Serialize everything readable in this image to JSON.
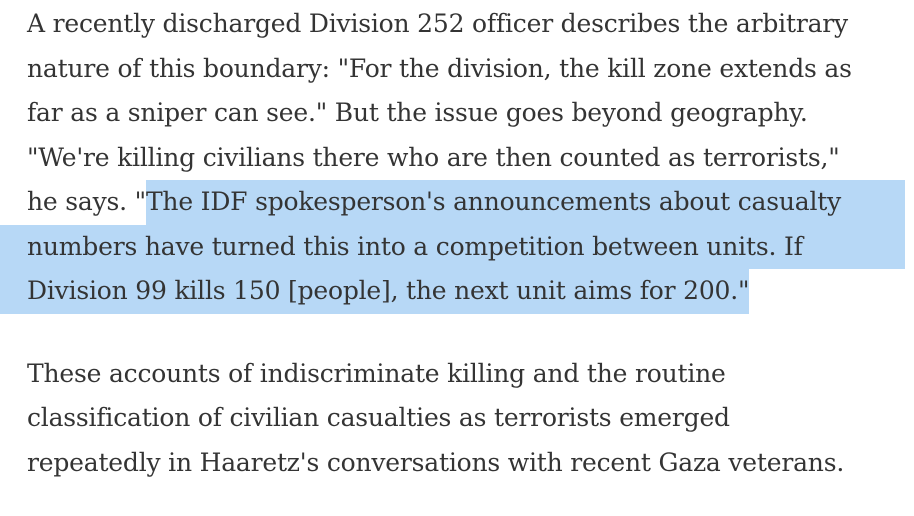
{
  "page": {
    "background_color": "#ffffff",
    "text_color": "#343434",
    "highlight_color": "#b7d8f6"
  },
  "article": {
    "paragraphs": [
      {
        "lines": [
          {
            "fill": "none",
            "segments": [
              {
                "text": "A recently discharged Division 252 officer describes the arbitrary",
                "highlighted": false
              }
            ]
          },
          {
            "fill": "none",
            "segments": [
              {
                "text": "nature of this boundary: \"For the division, the kill zone extends as",
                "highlighted": false
              }
            ]
          },
          {
            "fill": "none",
            "segments": [
              {
                "text": "far as a sniper can see.\" But the issue goes beyond geography.",
                "highlighted": false
              }
            ]
          },
          {
            "fill": "none",
            "segments": [
              {
                "text": "\"We're killing civilians there who are then counted as terrorists,\"",
                "highlighted": false
              }
            ]
          },
          {
            "fill": "right",
            "segments": [
              {
                "text": "he says. \"",
                "highlighted": false
              },
              {
                "text": "The IDF spokesperson's announcements about casualty",
                "highlighted": true
              }
            ]
          },
          {
            "fill": "both",
            "segments": [
              {
                "text": "numbers have turned this into a competition between units. If",
                "highlighted": true
              }
            ]
          },
          {
            "fill": "left",
            "segments": [
              {
                "text": "Division 99 kills 150 [people], the next unit aims for 200.\"",
                "highlighted": true
              }
            ]
          }
        ]
      },
      {
        "lines": [
          {
            "fill": "none",
            "segments": [
              {
                "text": "These accounts of indiscriminate killing and the routine",
                "highlighted": false
              }
            ]
          },
          {
            "fill": "none",
            "segments": [
              {
                "text": "classification of civilian casualties as terrorists emerged",
                "highlighted": false
              }
            ]
          },
          {
            "fill": "none",
            "segments": [
              {
                "text": "repeatedly in Haaretz's conversations with recent Gaza veterans.",
                "highlighted": false
              }
            ]
          }
        ]
      }
    ]
  },
  "selection": {
    "highlighted_text": "The IDF spokesperson's announcements about casualty numbers have turned this into a competition between units. If Division 99 kills 150 [people], the next unit aims for 200.\""
  }
}
